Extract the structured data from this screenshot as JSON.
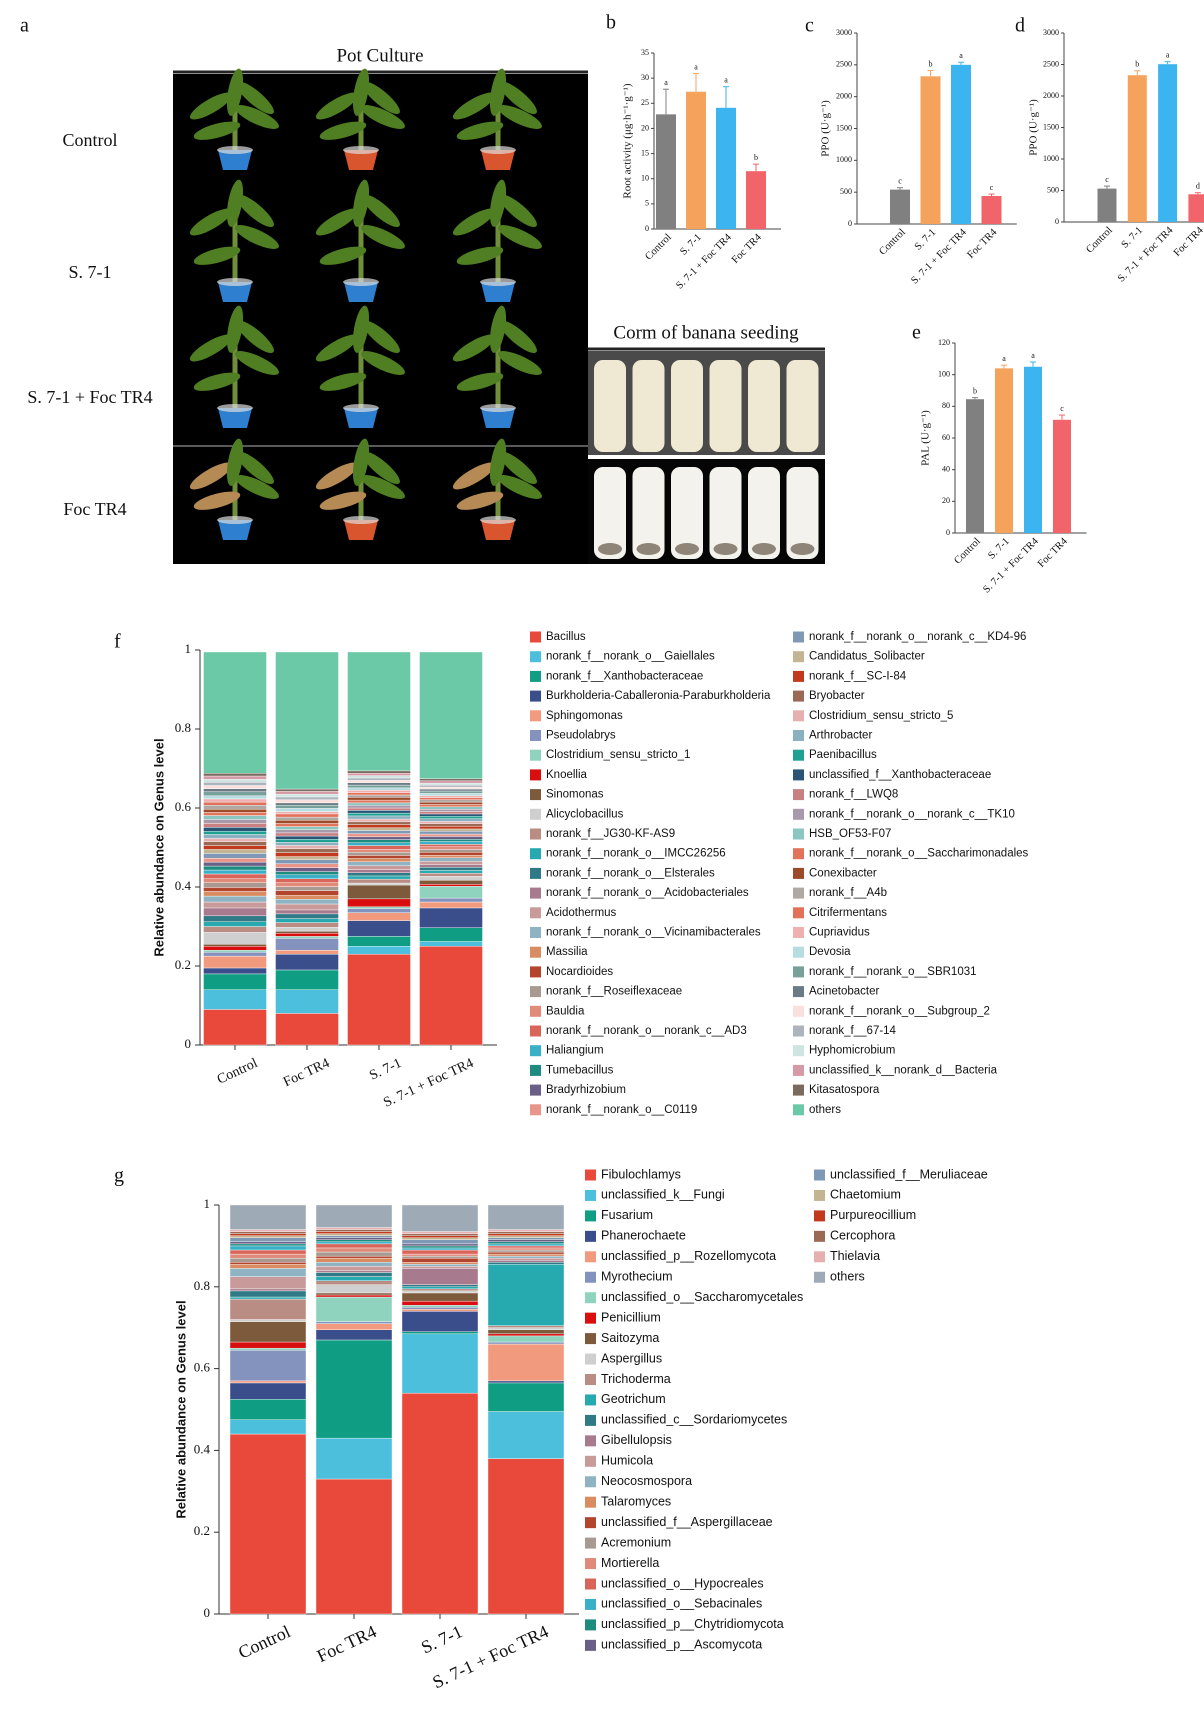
{
  "photo_panel": {
    "panel": "a",
    "title": "Pot Culture",
    "rows": [
      "Control",
      "S. 7-1",
      "S. 7-1 + Foc TR4",
      "Foc TR4"
    ],
    "inset_title": "Corm of banana seeding"
  },
  "chart_data": [
    {
      "type": "bar",
      "panel": "b",
      "ylabel": "Root activity (μg·h⁻¹·g⁻¹)",
      "categories": [
        "Control",
        "S. 7-1",
        "S. 7-1 + Foc TR4",
        "Foc TR4"
      ],
      "values": [
        22.8,
        27.3,
        24.1,
        11.5
      ],
      "errors": [
        5.0,
        3.6,
        4.2,
        1.4
      ],
      "significance_letters": [
        "a",
        "a",
        "a",
        "b"
      ],
      "colors": [
        "#808080",
        "#f5a35c",
        "#3cb4f0",
        "#f0646a"
      ],
      "ylim": [
        0,
        35
      ],
      "yticks": [
        0,
        5,
        10,
        15,
        20,
        25,
        30,
        35
      ]
    },
    {
      "type": "bar",
      "panel": "c",
      "ylabel": "PPO (U·g⁻¹)",
      "categories": [
        "Control",
        "S. 7-1",
        "S. 7-1 + Foc TR4",
        "Foc TR4"
      ],
      "values": [
        540,
        2320,
        2500,
        440
      ],
      "errors": [
        30,
        90,
        40,
        30
      ],
      "significance_letters": [
        "c",
        "b",
        "a",
        "c"
      ],
      "colors": [
        "#808080",
        "#f5a35c",
        "#3cb4f0",
        "#f0646a"
      ],
      "ylim": [
        0,
        3000
      ],
      "yticks": [
        0,
        500,
        1000,
        1500,
        2000,
        2500,
        3000
      ]
    },
    {
      "type": "bar",
      "panel": "d",
      "ylabel": "PPO (U·g⁻¹)",
      "categories": [
        "Control",
        "S. 7-1",
        "S. 7-1 + Foc TR4",
        "Foc TR4"
      ],
      "values": [
        530,
        2330,
        2505,
        440
      ],
      "errors": [
        40,
        70,
        40,
        25
      ],
      "significance_letters": [
        "c",
        "b",
        "a",
        "d"
      ],
      "colors": [
        "#808080",
        "#f5a35c",
        "#3cb4f0",
        "#f0646a"
      ],
      "ylim": [
        0,
        3000
      ],
      "yticks": [
        0,
        500,
        1000,
        1500,
        2000,
        2500,
        3000
      ]
    },
    {
      "type": "bar",
      "panel": "e",
      "ylabel": "PAL (U·g⁻¹)",
      "categories": [
        "Control",
        "S. 7-1",
        "S. 7-1 + Foc TR4",
        "Foc TR4"
      ],
      "values": [
        84.5,
        104,
        105,
        71.5
      ],
      "errors": [
        1,
        2,
        3,
        3
      ],
      "significance_letters": [
        "b",
        "a",
        "a",
        "c"
      ],
      "colors": [
        "#808080",
        "#f5a35c",
        "#3cb4f0",
        "#f0646a"
      ],
      "ylim": [
        0,
        120
      ],
      "yticks": [
        0,
        20,
        40,
        60,
        80,
        100,
        120
      ]
    },
    {
      "type": "stacked_bar",
      "panel": "f",
      "ylabel": "Relative abundance on Genus level",
      "categories": [
        "Control",
        "Foc TR4",
        "S. 7-1",
        "S. 7-1 + Foc TR4"
      ],
      "ylim": [
        0,
        1
      ],
      "yticks": [
        0,
        0.2,
        0.4,
        0.6,
        0.8,
        1
      ],
      "series": [
        {
          "name": "Bacillus",
          "color": "#e8493a",
          "values": [
            0.09,
            0.08,
            0.23,
            0.25
          ]
        },
        {
          "name": "norank_f__norank_o__Gaiellales",
          "color": "#4bbfdc",
          "values": [
            0.05,
            0.06,
            0.02,
            0.012
          ]
        },
        {
          "name": "norank_f__Xanthobacteraceae",
          "color": "#0f9e84",
          "values": [
            0.04,
            0.05,
            0.025,
            0.035
          ]
        },
        {
          "name": "Burkholderia-Caballeronia-Paraburkholderia",
          "color": "#3a4e8c",
          "values": [
            0.015,
            0.04,
            0.04,
            0.05
          ]
        },
        {
          "name": "Sphingomonas",
          "color": "#f29a7e",
          "values": [
            0.03,
            0.01,
            0.02,
            0.015
          ]
        },
        {
          "name": "Pseudolabrys",
          "color": "#8493bd",
          "values": [
            0.01,
            0.03,
            0.01,
            0.01
          ]
        },
        {
          "name": "Clostridium_sensu_stricto_1",
          "color": "#8fd3bf",
          "values": [
            0.005,
            0.005,
            0.005,
            0.03
          ]
        },
        {
          "name": "Knoellia",
          "color": "#d90f0f",
          "values": [
            0.01,
            0.008,
            0.02,
            0.005
          ]
        },
        {
          "name": "Sinomonas",
          "color": "#7d5a3c",
          "values": [
            0.005,
            0.005,
            0.035,
            0.01
          ]
        },
        {
          "name": "Alicyclobacillus",
          "color": "#cfcfcf",
          "values": [
            0.03,
            0.01,
            0.005,
            0.01
          ]
        },
        {
          "name": "norank_f__JG30-KF-AS9",
          "color": "#b98d84",
          "values": [
            0.015,
            0.012,
            0.01,
            0.008
          ]
        },
        {
          "name": "norank_f__norank_o__IMCC26256",
          "color": "#27a9b0",
          "values": [
            0.012,
            0.01,
            0.008,
            0.007
          ]
        },
        {
          "name": "norank_f__norank_o__Elsterales",
          "color": "#2f7a86",
          "values": [
            0.015,
            0.012,
            0.008,
            0.008
          ]
        },
        {
          "name": "norank_f__norank_o__Acidobacteriales",
          "color": "#a87a8e",
          "values": [
            0.02,
            0.01,
            0.008,
            0.007
          ]
        },
        {
          "name": "Acidothermus",
          "color": "#c99a9a",
          "values": [
            0.015,
            0.015,
            0.01,
            0.008
          ]
        },
        {
          "name": "norank_f__norank_o__Vicinamibacterales",
          "color": "#8fb3c3",
          "values": [
            0.015,
            0.012,
            0.01,
            0.009
          ]
        },
        {
          "name": "Massilia",
          "color": "#d98b62",
          "values": [
            0.012,
            0.01,
            0.008,
            0.006
          ]
        },
        {
          "name": "Nocardioides",
          "color": "#b3452e",
          "values": [
            0.01,
            0.012,
            0.008,
            0.008
          ]
        },
        {
          "name": "norank_f__Roseiflexaceae",
          "color": "#a89a90",
          "values": [
            0.012,
            0.01,
            0.008,
            0.007
          ]
        },
        {
          "name": "Bauldia",
          "color": "#e08a7a",
          "values": [
            0.01,
            0.01,
            0.007,
            0.007
          ]
        },
        {
          "name": "norank_f__norank_o__norank_c__AD3",
          "color": "#d9655a",
          "values": [
            0.012,
            0.01,
            0.01,
            0.006
          ]
        },
        {
          "name": "Haliangium",
          "color": "#3ab0c8",
          "values": [
            0.01,
            0.01,
            0.007,
            0.007
          ]
        },
        {
          "name": "Tumebacillus",
          "color": "#1d8b80",
          "values": [
            0.01,
            0.008,
            0.008,
            0.006
          ]
        },
        {
          "name": "Bradyrhizobium",
          "color": "#6a5f86",
          "values": [
            0.01,
            0.01,
            0.007,
            0.007
          ]
        },
        {
          "name": "norank_f__norank_o__C0119",
          "color": "#e8958a",
          "values": [
            0.01,
            0.01,
            0.008,
            0.006
          ]
        },
        {
          "name": "norank_f__norank_o__norank_c__KD4-96",
          "color": "#7f98b5",
          "values": [
            0.012,
            0.01,
            0.008,
            0.007
          ]
        },
        {
          "name": "Candidatus_Solibacter",
          "color": "#c4b592",
          "values": [
            0.01,
            0.008,
            0.007,
            0.006
          ]
        },
        {
          "name": "norank_f__SC-I-84",
          "color": "#c23a1d",
          "values": [
            0.01,
            0.01,
            0.008,
            0.007
          ]
        },
        {
          "name": "Bryobacter",
          "color": "#9b6a55",
          "values": [
            0.01,
            0.01,
            0.007,
            0.006
          ]
        },
        {
          "name": "Clostridium_sensu_stricto_5",
          "color": "#e6b0b0",
          "values": [
            0.008,
            0.008,
            0.007,
            0.006
          ]
        },
        {
          "name": "Arthrobacter",
          "color": "#8bb0c0",
          "values": [
            0.01,
            0.008,
            0.008,
            0.007
          ]
        },
        {
          "name": "Paenibacillus",
          "color": "#1fa092",
          "values": [
            0.008,
            0.008,
            0.007,
            0.006
          ]
        },
        {
          "name": "unclassified_f__Xanthobacteraceae",
          "color": "#2a5577",
          "values": [
            0.01,
            0.008,
            0.007,
            0.006
          ]
        },
        {
          "name": "norank_f__LWQ8",
          "color": "#c98080",
          "values": [
            0.01,
            0.008,
            0.006,
            0.006
          ]
        },
        {
          "name": "norank_f__norank_o__norank_c__TK10",
          "color": "#a89aac",
          "values": [
            0.01,
            0.008,
            0.007,
            0.006
          ]
        },
        {
          "name": "HSB_OF53-F07",
          "color": "#8cc6c0",
          "values": [
            0.01,
            0.008,
            0.006,
            0.006
          ]
        },
        {
          "name": "norank_f__norank_o__Saccharimonadales",
          "color": "#e0735a",
          "values": [
            0.008,
            0.008,
            0.007,
            0.006
          ]
        },
        {
          "name": "Conexibacter",
          "color": "#9b4a2a",
          "values": [
            0.008,
            0.008,
            0.007,
            0.006
          ]
        },
        {
          "name": "norank_f__A4b",
          "color": "#b0a8a2",
          "values": [
            0.01,
            0.008,
            0.006,
            0.006
          ]
        },
        {
          "name": "Citrifermentans",
          "color": "#e37058",
          "values": [
            0.008,
            0.008,
            0.006,
            0.005
          ]
        },
        {
          "name": "Cupriavidus",
          "color": "#efb0b0",
          "values": [
            0.008,
            0.006,
            0.006,
            0.005
          ]
        },
        {
          "name": "Devosia",
          "color": "#b7dde0",
          "values": [
            0.008,
            0.008,
            0.006,
            0.006
          ]
        },
        {
          "name": "norank_f__norank_o__SBR1031",
          "color": "#78a09a",
          "values": [
            0.01,
            0.008,
            0.007,
            0.006
          ]
        },
        {
          "name": "Acinetobacter",
          "color": "#6b7b86",
          "values": [
            0.008,
            0.006,
            0.006,
            0.005
          ]
        },
        {
          "name": "norank_f__norank_o__Subgroup_2",
          "color": "#f9e0dc",
          "values": [
            0.008,
            0.008,
            0.006,
            0.005
          ]
        },
        {
          "name": "norank_f__67-14",
          "color": "#aeb4bd",
          "values": [
            0.008,
            0.007,
            0.006,
            0.005
          ]
        },
        {
          "name": "Hyphomicrobium",
          "color": "#cde4e0",
          "values": [
            0.008,
            0.007,
            0.006,
            0.005
          ]
        },
        {
          "name": "unclassified_k__norank_d__Bacteria",
          "color": "#d59aa6",
          "values": [
            0.008,
            0.007,
            0.006,
            0.006
          ]
        },
        {
          "name": "Kitasatospora",
          "color": "#7b6a5e",
          "values": [
            0.007,
            0.006,
            0.006,
            0.005
          ]
        },
        {
          "name": "others",
          "color": "#6cc9a8",
          "values": [
            0.307,
            0.347,
            0.301,
            0.321
          ]
        }
      ]
    },
    {
      "type": "stacked_bar",
      "panel": "g",
      "ylabel": "Relative abundance on Genus level",
      "categories": [
        "Control",
        "Foc TR4",
        "S. 7-1",
        "S. 7-1 + Foc TR4"
      ],
      "ylim": [
        0,
        1
      ],
      "yticks": [
        0,
        0.2,
        0.4,
        0.6,
        0.8,
        1
      ],
      "series": [
        {
          "name": "Fibulochlamys",
          "color": "#e8493a",
          "values": [
            0.44,
            0.33,
            0.54,
            0.38
          ]
        },
        {
          "name": "unclassified_k__Fungi",
          "color": "#4bbfdc",
          "values": [
            0.035,
            0.1,
            0.145,
            0.115
          ]
        },
        {
          "name": "Fusarium",
          "color": "#0f9e84",
          "values": [
            0.05,
            0.24,
            0.005,
            0.07
          ]
        },
        {
          "name": "Phanerochaete",
          "color": "#3a4e8c",
          "values": [
            0.04,
            0.025,
            0.05,
            0.005
          ]
        },
        {
          "name": "unclassified_p__Rozellomycota",
          "color": "#f29a7e",
          "values": [
            0.005,
            0.015,
            0.005,
            0.09
          ]
        },
        {
          "name": "Myrothecium",
          "color": "#8493bd",
          "values": [
            0.075,
            0.005,
            0.005,
            0.005
          ]
        },
        {
          "name": "unclassified_o__Saccharomycetales",
          "color": "#8fd3bf",
          "values": [
            0.005,
            0.06,
            0.005,
            0.015
          ]
        },
        {
          "name": "Penicillium",
          "color": "#d90f0f",
          "values": [
            0.015,
            0.005,
            0.01,
            0.005
          ]
        },
        {
          "name": "Saitozyma",
          "color": "#7d5a3c",
          "values": [
            0.05,
            0.005,
            0.02,
            0.01
          ]
        },
        {
          "name": "Aspergillus",
          "color": "#cfcfcf",
          "values": [
            0.005,
            0.02,
            0.005,
            0.005
          ]
        },
        {
          "name": "Trichoderma",
          "color": "#b98d84",
          "values": [
            0.05,
            0.01,
            0.005,
            0.005
          ]
        },
        {
          "name": "Geotrichum",
          "color": "#27a9b0",
          "values": [
            0.005,
            0.01,
            0.005,
            0.15
          ]
        },
        {
          "name": "unclassified_c__Sordariomycetes",
          "color": "#2f7a86",
          "values": [
            0.015,
            0.01,
            0.005,
            0.005
          ]
        },
        {
          "name": "Gibellulopsis",
          "color": "#a87a8e",
          "values": [
            0.005,
            0.005,
            0.04,
            0.005
          ]
        },
        {
          "name": "Humicola",
          "color": "#c99a9a",
          "values": [
            0.03,
            0.01,
            0.005,
            0.005
          ]
        },
        {
          "name": "Neocosmospora",
          "color": "#8fb3c3",
          "values": [
            0.02,
            0.01,
            0.005,
            0.005
          ]
        },
        {
          "name": "Talaromyces",
          "color": "#d98b62",
          "values": [
            0.01,
            0.01,
            0.005,
            0.005
          ]
        },
        {
          "name": "unclassified_f__Aspergillaceae",
          "color": "#b3452e",
          "values": [
            0.005,
            0.005,
            0.01,
            0.005
          ]
        },
        {
          "name": "Acremonium",
          "color": "#a89a90",
          "values": [
            0.01,
            0.01,
            0.005,
            0.005
          ]
        },
        {
          "name": "Mortierella",
          "color": "#e08a7a",
          "values": [
            0.01,
            0.01,
            0.005,
            0.005
          ]
        },
        {
          "name": "unclassified_o__Hypocreales",
          "color": "#d9655a",
          "values": [
            0.01,
            0.01,
            0.01,
            0.005
          ]
        },
        {
          "name": "unclassified_o__Sebacinales",
          "color": "#3ab0c8",
          "values": [
            0.01,
            0.005,
            0.005,
            0.005
          ]
        },
        {
          "name": "unclassified_p__Chytridiomycota",
          "color": "#1d8b80",
          "values": [
            0.005,
            0.005,
            0.005,
            0.005
          ]
        },
        {
          "name": "unclassified_p__Ascomycota",
          "color": "#6a5f86",
          "values": [
            0.005,
            0.005,
            0.005,
            0.005
          ]
        },
        {
          "name": "unclassified_f__Meruliaceae",
          "color": "#7f98b5",
          "values": [
            0.01,
            0.005,
            0.01,
            0.005
          ]
        },
        {
          "name": "Chaetomium",
          "color": "#c4b592",
          "values": [
            0.005,
            0.005,
            0.005,
            0.005
          ]
        },
        {
          "name": "Purpureocillium",
          "color": "#c23a1d",
          "values": [
            0.005,
            0.005,
            0.005,
            0.005
          ]
        },
        {
          "name": "Cercophora",
          "color": "#9b6a55",
          "values": [
            0.005,
            0.005,
            0.005,
            0.005
          ]
        },
        {
          "name": "Thielavia",
          "color": "#e6b0b0",
          "values": [
            0.005,
            0.005,
            0.005,
            0.005
          ]
        },
        {
          "name": "others",
          "color": "#9eaab5",
          "values": [
            0.06,
            0.055,
            0.065,
            0.06
          ]
        }
      ]
    }
  ]
}
